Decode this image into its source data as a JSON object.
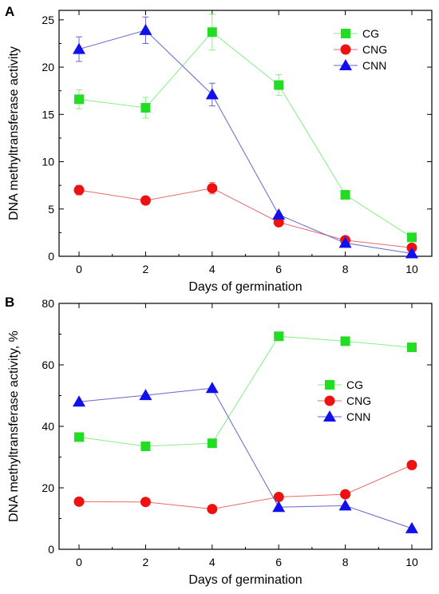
{
  "chart_data": [
    {
      "panel": "A",
      "type": "line",
      "xlabel": "Days of germination",
      "ylabel": "DNA methyltransferase activity",
      "xlim": [
        -0.6,
        10.6
      ],
      "ylim": [
        0,
        26
      ],
      "xticks": [
        0,
        2,
        4,
        6,
        8,
        10
      ],
      "yticks": [
        0,
        5,
        10,
        15,
        20,
        25
      ],
      "grid": false,
      "legend_position": "top-right",
      "x": [
        0,
        2,
        4,
        6,
        8,
        10
      ],
      "series": [
        {
          "name": "CG",
          "marker": "square",
          "color": "#22dd22",
          "line": "#88ee88",
          "values": [
            16.6,
            15.7,
            23.7,
            18.1,
            6.5,
            2.0
          ],
          "errors": [
            1.0,
            1.1,
            1.9,
            1.1,
            0,
            0
          ]
        },
        {
          "name": "CNG",
          "marker": "circle",
          "color": "#ee1111",
          "line": "#ee6a6a",
          "values": [
            7.0,
            5.9,
            7.2,
            3.6,
            1.7,
            0.9
          ],
          "errors": [
            0.5,
            0,
            0.6,
            0,
            0,
            0
          ]
        },
        {
          "name": "CNN",
          "marker": "triangle",
          "color": "#1111ee",
          "line": "#6666cc",
          "values": [
            21.9,
            23.9,
            17.1,
            4.4,
            1.4,
            0.3
          ],
          "errors": [
            1.3,
            1.4,
            1.2,
            0,
            0,
            0
          ]
        }
      ]
    },
    {
      "panel": "B",
      "type": "line",
      "xlabel": "Days of germination",
      "ylabel": "DNA methyltransferase activity, %",
      "xlim": [
        -0.6,
        10.6
      ],
      "ylim": [
        0,
        80
      ],
      "xticks": [
        0,
        2,
        4,
        6,
        8,
        10
      ],
      "yticks": [
        0,
        20,
        40,
        60,
        80
      ],
      "grid": false,
      "legend_position": "center-right",
      "x": [
        0,
        2,
        4,
        6,
        8,
        10
      ],
      "series": [
        {
          "name": "CG",
          "marker": "square",
          "color": "#22dd22",
          "line": "#88ee88",
          "values": [
            36.5,
            33.5,
            34.5,
            69.3,
            67.7,
            65.7
          ]
        },
        {
          "name": "CNG",
          "marker": "circle",
          "color": "#ee1111",
          "line": "#ee6a6a",
          "values": [
            15.5,
            15.4,
            13.1,
            17.0,
            17.9,
            27.4
          ]
        },
        {
          "name": "CNN",
          "marker": "triangle",
          "color": "#1111ee",
          "line": "#6666cc",
          "values": [
            48.0,
            50.1,
            52.4,
            13.7,
            14.2,
            6.8
          ]
        }
      ]
    }
  ]
}
